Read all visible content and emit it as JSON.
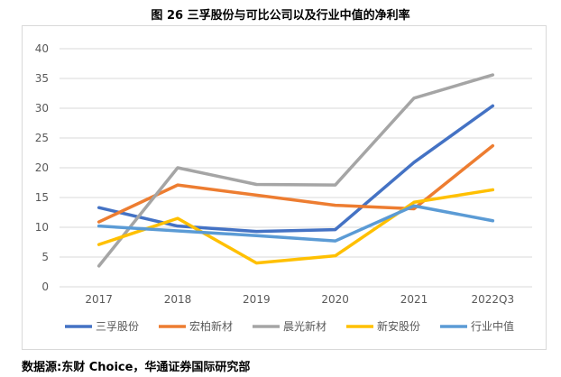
{
  "figure": {
    "title": "图  26  三孚股份与可比公司以及行业中值的净利率",
    "source": "数据源:东财 Choice，华通证券国际研究部"
  },
  "chart_data": {
    "type": "line",
    "categories": [
      "2017",
      "2018",
      "2019",
      "2020",
      "2021",
      "2022Q3"
    ],
    "ylim": [
      0,
      40
    ],
    "yticks": [
      "0",
      "5",
      "10",
      "15",
      "20",
      "25",
      "30",
      "35",
      "40"
    ],
    "grid": true,
    "legend_position": "bottom",
    "series": [
      {
        "name": "三孚股份",
        "color": "#4472C4",
        "values": [
          13.3,
          10.2,
          9.3,
          9.6,
          20.9,
          30.4
        ]
      },
      {
        "name": "宏柏新材",
        "color": "#ED7D31",
        "values": [
          10.9,
          17.1,
          15.4,
          13.7,
          13.1,
          23.7
        ]
      },
      {
        "name": "晨光新材",
        "color": "#A5A5A5",
        "values": [
          3.5,
          20.0,
          17.2,
          17.1,
          31.7,
          35.6
        ]
      },
      {
        "name": "新安股份",
        "color": "#FFC000",
        "values": [
          7.1,
          11.5,
          4.0,
          5.2,
          14.2,
          16.3
        ]
      },
      {
        "name": "行业中值",
        "color": "#5B9BD5",
        "values": [
          10.2,
          9.4,
          8.6,
          7.7,
          13.6,
          11.1
        ]
      }
    ]
  }
}
